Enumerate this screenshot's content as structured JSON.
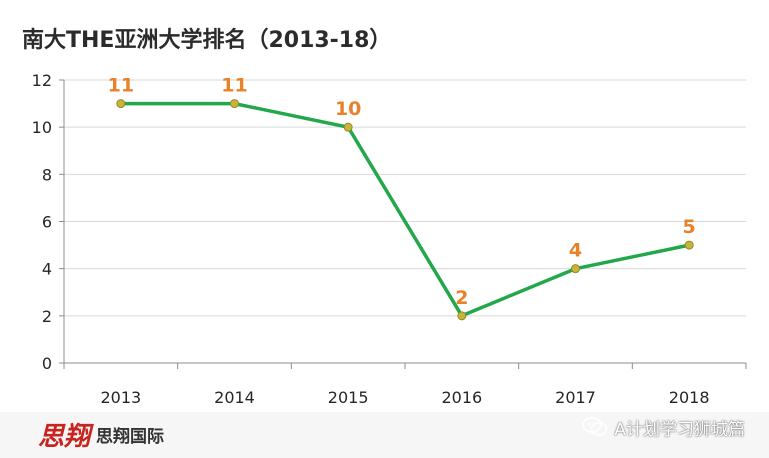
{
  "chart_data": {
    "type": "line",
    "title": "南大THE亚洲大学排名（2013-18）",
    "categories": [
      "2013",
      "2014",
      "2015",
      "2016",
      "2017",
      "2018"
    ],
    "series": [
      {
        "values": [
          11,
          11,
          10,
          2,
          4,
          5
        ],
        "color": "#22a84a",
        "marker_color": "#c9b43a",
        "label_color": "#e8822a"
      }
    ],
    "ylim": [
      0,
      12
    ],
    "yticks": [
      0,
      2,
      4,
      6,
      8,
      10,
      12
    ],
    "xlabel": "",
    "ylabel": "",
    "grid": true,
    "legend": "none"
  },
  "footer": {
    "logo_mark": "思翔",
    "logo_text": "思翔国际"
  },
  "watermark": {
    "icon": "wechat-icon",
    "text": "A计划学习狮城篇"
  }
}
